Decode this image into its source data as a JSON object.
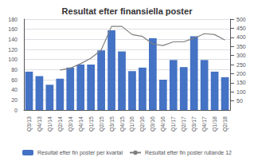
{
  "chart_data": {
    "type": "bar",
    "title": "Resultat efter finansiella poster",
    "categories": [
      "Q3/13",
      "Q4/13",
      "Q1/14",
      "Q2/14",
      "Q3/14",
      "Q4/14",
      "Q1/15",
      "Q2/15",
      "Q3/15",
      "Q4/15",
      "Q1/16",
      "Q2/16",
      "Q3/16",
      "Q4/16",
      "Q1/17",
      "Q2/17",
      "Q3/17",
      "Q4/17",
      "Q1/18",
      "Q2/18"
    ],
    "series": [
      {
        "name": "Resultat efter fin poster per kvartal",
        "type": "bar",
        "color": "#4472C4",
        "values": [
          76,
          67,
          50,
          62,
          84,
          90,
          90,
          118,
          158,
          116,
          77,
          84,
          142,
          60,
          99,
          85,
          146,
          99,
          76,
          65
        ]
      },
      {
        "name": "Resultat efter fin poster rullande 12",
        "type": "line",
        "axis": "y2",
        "color": "#7f7f7f",
        "values": [
          null,
          null,
          null,
          220,
          230,
          255,
          285,
          330,
          460,
          460,
          415,
          405,
          363,
          355,
          375,
          375,
          395,
          420,
          415,
          385
        ]
      }
    ],
    "ylim": [
      0,
      180
    ],
    "yticks": [
      0,
      20,
      40,
      60,
      80,
      100,
      120,
      140,
      160,
      180
    ],
    "y2lim": [
      0,
      500
    ],
    "y2ticks": [
      50,
      100,
      150,
      200,
      250,
      300,
      350,
      400,
      450,
      500
    ],
    "grid": true,
    "legend": "bottom"
  }
}
